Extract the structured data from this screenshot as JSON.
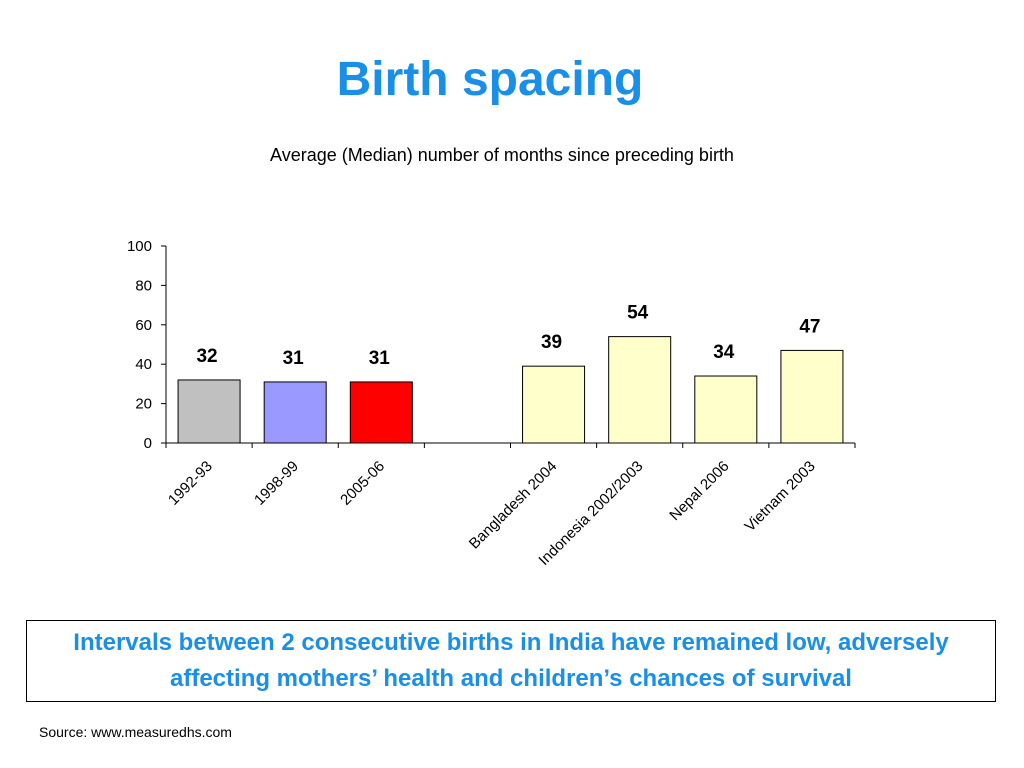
{
  "title": "Birth spacing",
  "subtitle": "Average (Median) number of months since preceding birth",
  "callout": "Intervals between 2 consecutive births in India have remained low, adversely affecting mothers’ health and children’s chances of survival",
  "source": "Source:  www.measuredhs.com",
  "chart_data": {
    "type": "bar",
    "categories": [
      "1992-93",
      "1998-99",
      "2005-06",
      "",
      "Bangladesh 2004",
      "Indonesia 2002/2003",
      "Nepal 2006",
      "Vietnam 2003"
    ],
    "values": [
      32,
      31,
      31,
      null,
      39,
      54,
      34,
      47
    ],
    "colors": [
      "#c0c0c0",
      "#9999ff",
      "#ff0000",
      null,
      "#ffffcc",
      "#ffffcc",
      "#ffffcc",
      "#ffffcc"
    ],
    "ylim": [
      0,
      100
    ],
    "yticks": [
      0,
      20,
      40,
      60,
      80,
      100
    ],
    "data_labels": true,
    "grid": false,
    "legend": false,
    "xlabel": "",
    "ylabel": ""
  }
}
